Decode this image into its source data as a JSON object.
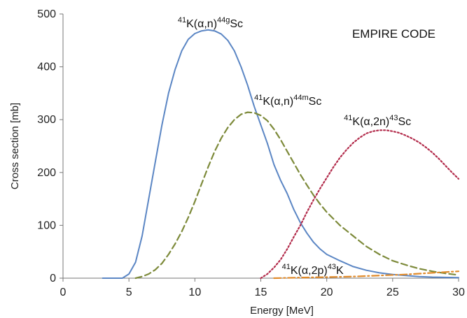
{
  "chart_data": {
    "type": "line",
    "xlabel": "Energy [MeV]",
    "ylabel": "Cross section [mb]",
    "xlim": [
      0,
      30
    ],
    "ylim": [
      0,
      500
    ],
    "xticks": [
      0,
      5,
      10,
      15,
      20,
      25,
      30
    ],
    "yticks": [
      0,
      100,
      200,
      300,
      400,
      500
    ],
    "grid": false,
    "code_label": "EMPIRE CODE",
    "series": [
      {
        "name": "41K(α,n)44gSc",
        "label_parts": {
          "pre": "41",
          "mid": "K(α,n)",
          "post_sup": "44g",
          "end": "Sc"
        },
        "color": "#5b86c4",
        "dash": "solid",
        "label_at": [
          8.7,
          475
        ],
        "points": [
          [
            3,
            0
          ],
          [
            4.5,
            0
          ],
          [
            5,
            8
          ],
          [
            5.5,
            30
          ],
          [
            6,
            80
          ],
          [
            6.5,
            150
          ],
          [
            7,
            220
          ],
          [
            7.5,
            290
          ],
          [
            8,
            350
          ],
          [
            8.5,
            395
          ],
          [
            9,
            430
          ],
          [
            9.5,
            452
          ],
          [
            10,
            463
          ],
          [
            10.5,
            468
          ],
          [
            11,
            470
          ],
          [
            11.5,
            468
          ],
          [
            12,
            462
          ],
          [
            12.5,
            450
          ],
          [
            13,
            430
          ],
          [
            13.5,
            400
          ],
          [
            14,
            365
          ],
          [
            14.5,
            325
          ],
          [
            15,
            290
          ],
          [
            15.5,
            255
          ],
          [
            16,
            215
          ],
          [
            16.5,
            185
          ],
          [
            17,
            160
          ],
          [
            17.5,
            130
          ],
          [
            18,
            105
          ],
          [
            18.5,
            85
          ],
          [
            19,
            68
          ],
          [
            19.5,
            55
          ],
          [
            20,
            45
          ],
          [
            21,
            33
          ],
          [
            22,
            22
          ],
          [
            23,
            15
          ],
          [
            24,
            10
          ],
          [
            25,
            7
          ],
          [
            26,
            5
          ],
          [
            27,
            3
          ],
          [
            28,
            2
          ],
          [
            30,
            1
          ]
        ]
      },
      {
        "name": "41K(α,n)44mSc",
        "label_parts": {
          "pre": "41",
          "mid": "K(α,n)",
          "post_sup": "44m",
          "end": "Sc"
        },
        "color": "#7d8a3a",
        "dash": "dashed",
        "label_at": [
          14.5,
          328
        ],
        "points": [
          [
            5.5,
            0
          ],
          [
            6,
            3
          ],
          [
            6.5,
            8
          ],
          [
            7,
            16
          ],
          [
            7.5,
            28
          ],
          [
            8,
            45
          ],
          [
            8.5,
            65
          ],
          [
            9,
            88
          ],
          [
            9.5,
            115
          ],
          [
            10,
            145
          ],
          [
            10.5,
            178
          ],
          [
            11,
            210
          ],
          [
            11.5,
            240
          ],
          [
            12,
            265
          ],
          [
            12.5,
            285
          ],
          [
            13,
            300
          ],
          [
            13.5,
            310
          ],
          [
            14,
            314
          ],
          [
            14.5,
            313
          ],
          [
            15,
            308
          ],
          [
            15.5,
            298
          ],
          [
            16,
            282
          ],
          [
            16.5,
            262
          ],
          [
            17,
            240
          ],
          [
            17.5,
            218
          ],
          [
            18,
            196
          ],
          [
            18.5,
            176
          ],
          [
            19,
            157
          ],
          [
            19.5,
            140
          ],
          [
            20,
            125
          ],
          [
            21,
            100
          ],
          [
            22,
            80
          ],
          [
            23,
            60
          ],
          [
            24,
            45
          ],
          [
            25,
            33
          ],
          [
            26,
            25
          ],
          [
            27,
            18
          ],
          [
            28,
            13
          ],
          [
            29,
            9
          ],
          [
            30,
            6
          ]
        ]
      },
      {
        "name": "41K(α,2n)43Sc",
        "label_parts": {
          "pre": "41",
          "mid": "K(α,2n)",
          "post_sup": "43",
          "end": "Sc"
        },
        "color": "#b22a4a",
        "dash": "dotted",
        "label_at": [
          21.3,
          290
        ],
        "points": [
          [
            15,
            0
          ],
          [
            15.5,
            8
          ],
          [
            16,
            20
          ],
          [
            16.5,
            35
          ],
          [
            17,
            55
          ],
          [
            17.5,
            78
          ],
          [
            18,
            100
          ],
          [
            18.5,
            125
          ],
          [
            19,
            148
          ],
          [
            19.5,
            170
          ],
          [
            20,
            190
          ],
          [
            20.5,
            210
          ],
          [
            21,
            228
          ],
          [
            21.5,
            243
          ],
          [
            22,
            256
          ],
          [
            22.5,
            266
          ],
          [
            23,
            274
          ],
          [
            23.5,
            278
          ],
          [
            24,
            280
          ],
          [
            24.5,
            280
          ],
          [
            25,
            278
          ],
          [
            25.5,
            275
          ],
          [
            26,
            270
          ],
          [
            26.5,
            264
          ],
          [
            27,
            257
          ],
          [
            27.5,
            248
          ],
          [
            28,
            238
          ],
          [
            28.5,
            226
          ],
          [
            29,
            213
          ],
          [
            29.5,
            200
          ],
          [
            30,
            188
          ]
        ]
      },
      {
        "name": "41K(α,2p)43K",
        "label_parts": {
          "pre": "41",
          "mid": "K(α,2p)",
          "post_sup": "43",
          "end": "K"
        },
        "color": "#e08a2a",
        "dash": "dashdot",
        "label_at": [
          16.6,
          8
        ],
        "points": [
          [
            16,
            0
          ],
          [
            18,
            1
          ],
          [
            20,
            2
          ],
          [
            22,
            3
          ],
          [
            24,
            5
          ],
          [
            26,
            7
          ],
          [
            28,
            10
          ],
          [
            30,
            13
          ]
        ]
      }
    ]
  }
}
